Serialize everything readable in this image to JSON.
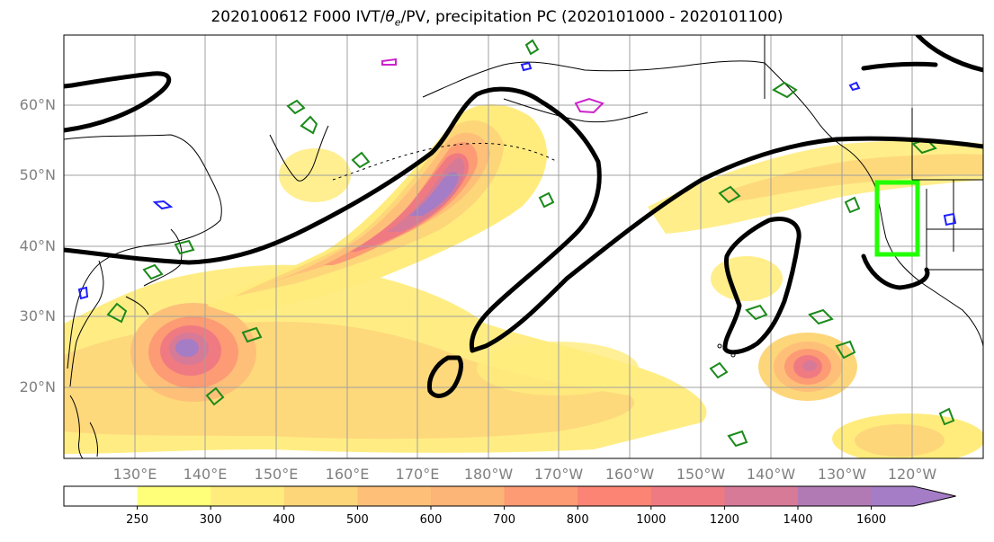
{
  "title": {
    "prefix": "2020100612 F000 IVT/",
    "theta": "θ",
    "theta_sub": "e",
    "suffix": "/PV, precipitation PC (2020101000 - 2020101100)"
  },
  "map": {
    "lat_labels": [
      "60°N",
      "50°N",
      "40°N",
      "30°N",
      "20°N"
    ],
    "lon_labels": [
      "130°E",
      "140°E",
      "150°E",
      "160°E",
      "170°E",
      "180°W",
      "170°W",
      "160°W",
      "150°W",
      "140°W",
      "130°W",
      "120°W"
    ],
    "domain_lon": [
      120,
      250
    ],
    "domain_lat": [
      10,
      70
    ],
    "colors": {
      "ocean": "#ffffff",
      "coast": "#000000",
      "grid": "#a0a0a0",
      "pv_contour": "#000000",
      "theta_contour": "#1a8a1a",
      "precip_contour_blue": "#1f1fff",
      "precip_contour_magenta": "#cc22cc",
      "box": "#22ff00"
    }
  },
  "colorbar": {
    "tick_labels": [
      "250",
      "300",
      "400",
      "500",
      "600",
      "700",
      "800",
      "1000",
      "1200",
      "1400",
      "1600"
    ],
    "colors": [
      "#ffffff",
      "#ffff7a",
      "#ffec7d",
      "#fed67a",
      "#fec078",
      "#fdb477",
      "#fd9b74",
      "#fb8474",
      "#f07a82",
      "#d67a98",
      "#b27ab5",
      "#a57cc6"
    ]
  }
}
